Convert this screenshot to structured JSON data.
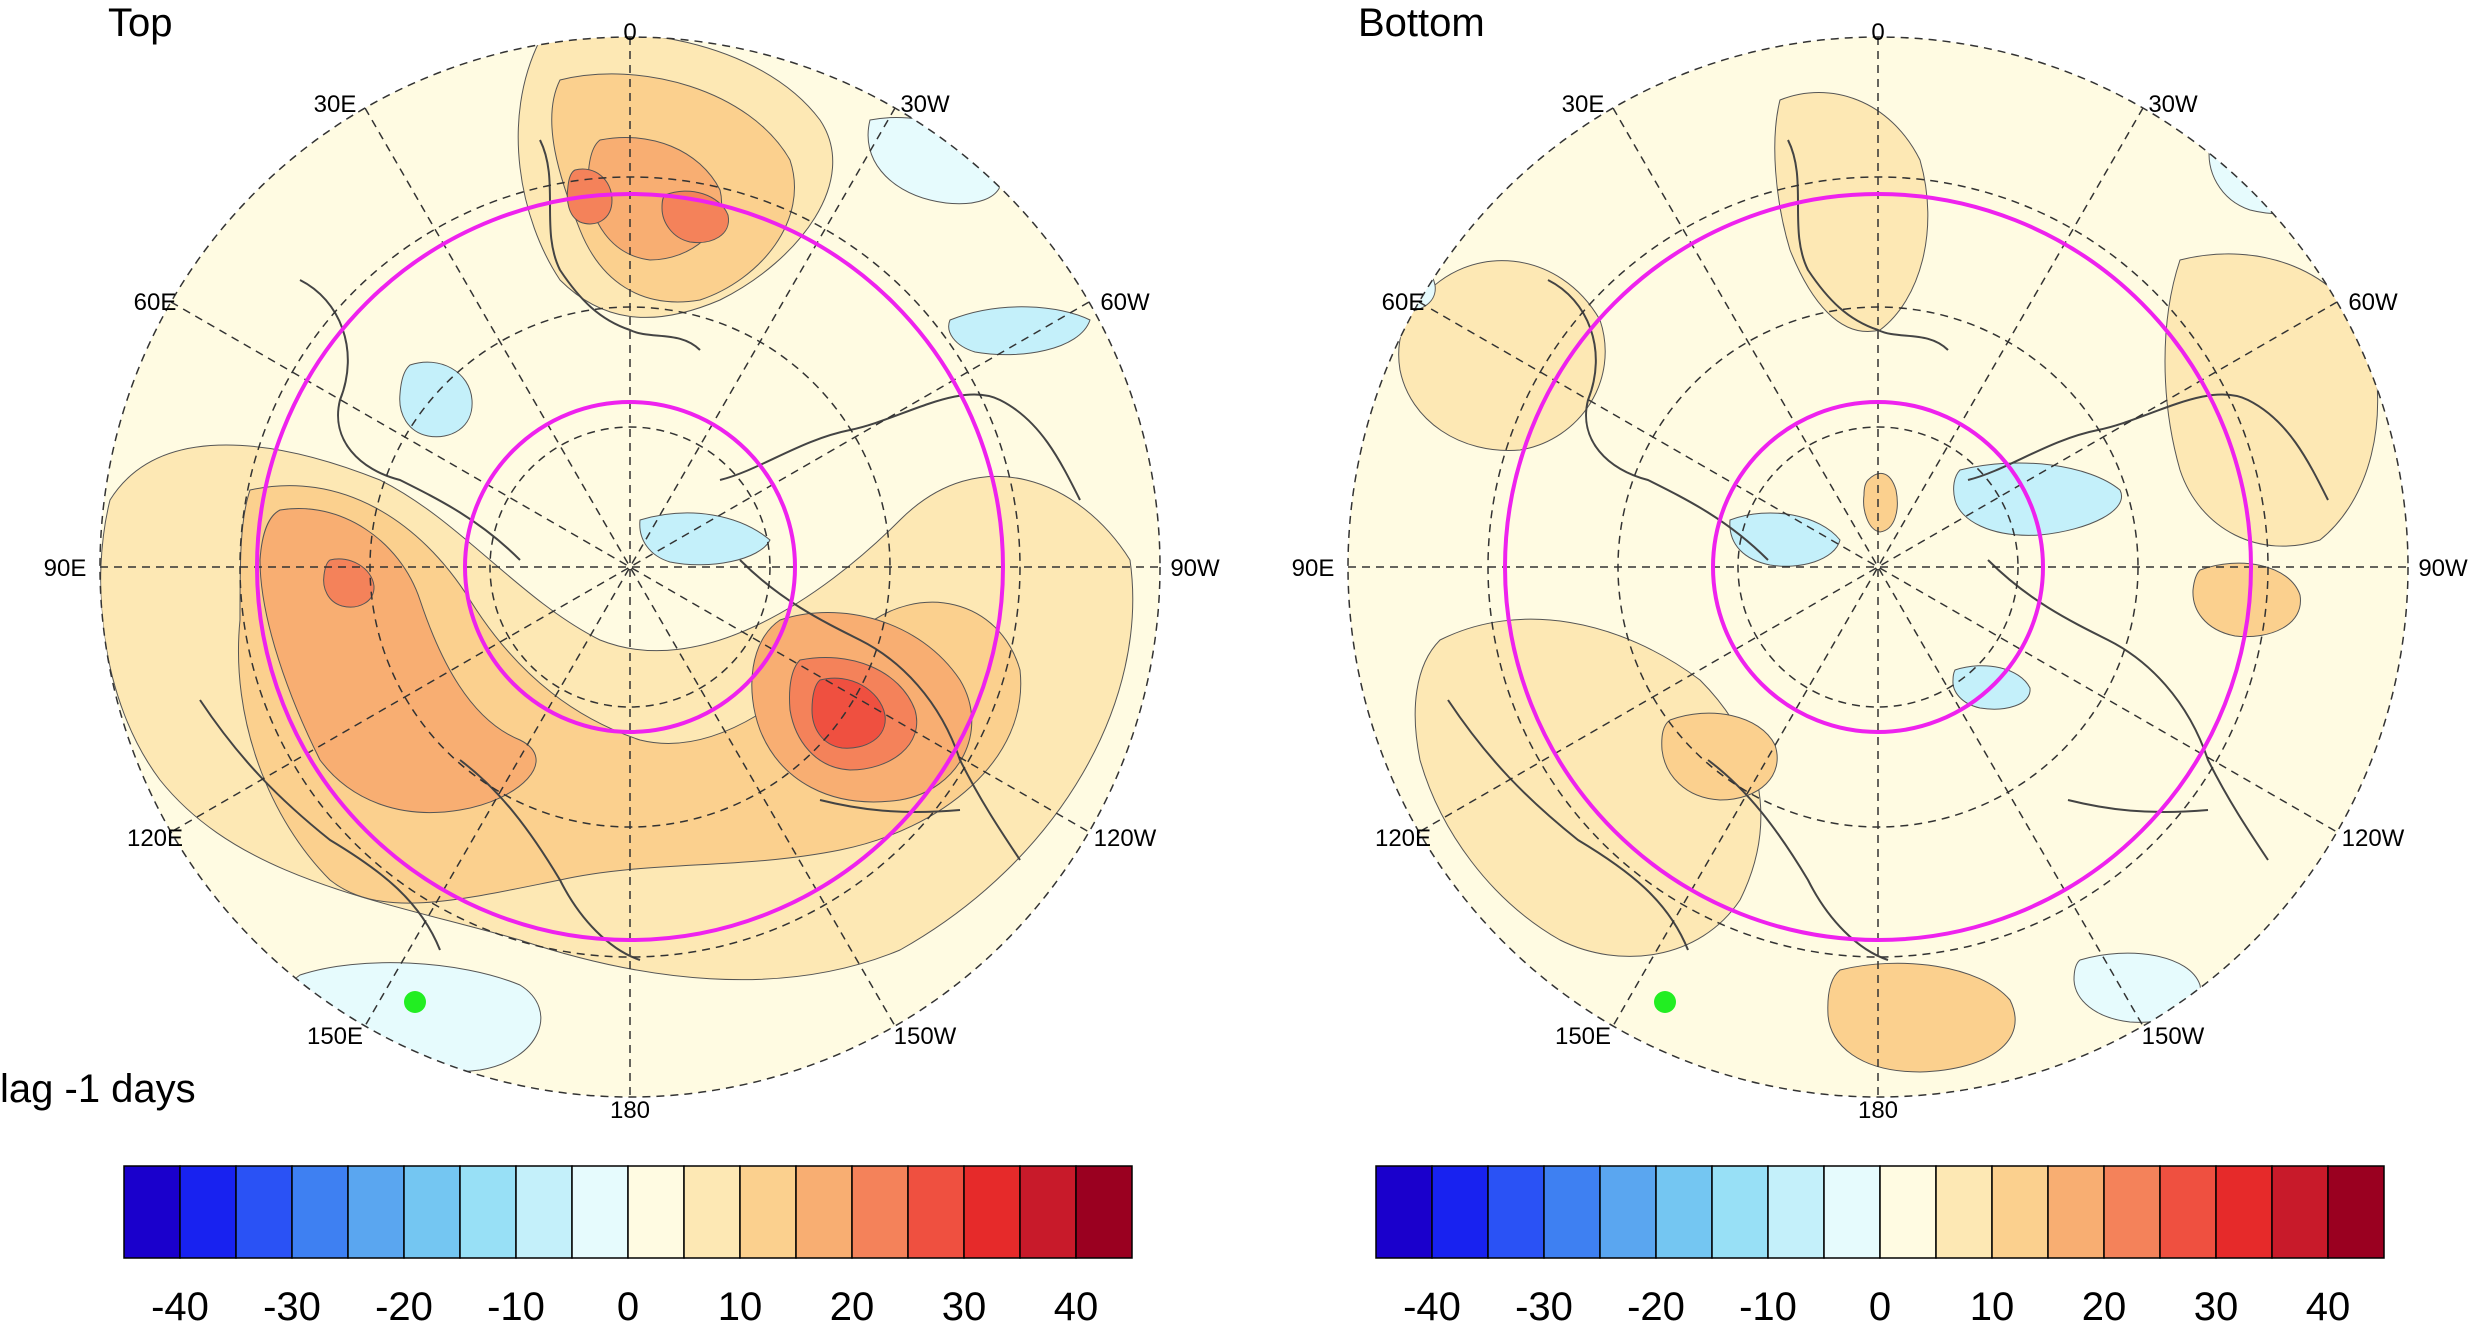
{
  "panels": [
    {
      "id": "top",
      "title": "Top",
      "subtitle": "lag -1 days",
      "colorbar_ticks": [
        "-40",
        "-30",
        "-20",
        "-10",
        "0",
        "10",
        "20",
        "30",
        "40"
      ],
      "marker_color": "#22ee22"
    },
    {
      "id": "bottom",
      "title": "Bottom",
      "subtitle": "",
      "colorbar_ticks": [
        "-40",
        "-30",
        "-20",
        "-10",
        "0",
        "10",
        "20",
        "30",
        "40"
      ],
      "marker_color": "#22ee22"
    }
  ],
  "longitude_labels": [
    "0",
    "30W",
    "60W",
    "90W",
    "120W",
    "150W",
    "180",
    "150E",
    "120E",
    "90E",
    "60E",
    "30E"
  ],
  "colorbar": {
    "colors": [
      "#1a00cc",
      "#1822f0",
      "#2a52f5",
      "#3e80f2",
      "#5aa6f0",
      "#74c6f2",
      "#98e0f6",
      "#c4f0fa",
      "#e6fbfd",
      "#fffbe2",
      "#fde8b4",
      "#fbd08e",
      "#f8ae72",
      "#f4825a",
      "#ef5040",
      "#e62a2a",
      "#c81a2a",
      "#9a0020"
    ],
    "min": -45,
    "max": 45,
    "step": 5
  },
  "overlay_colors": {
    "circles": "#ee22ee",
    "coast": "#444444",
    "grid": "#333333"
  }
}
